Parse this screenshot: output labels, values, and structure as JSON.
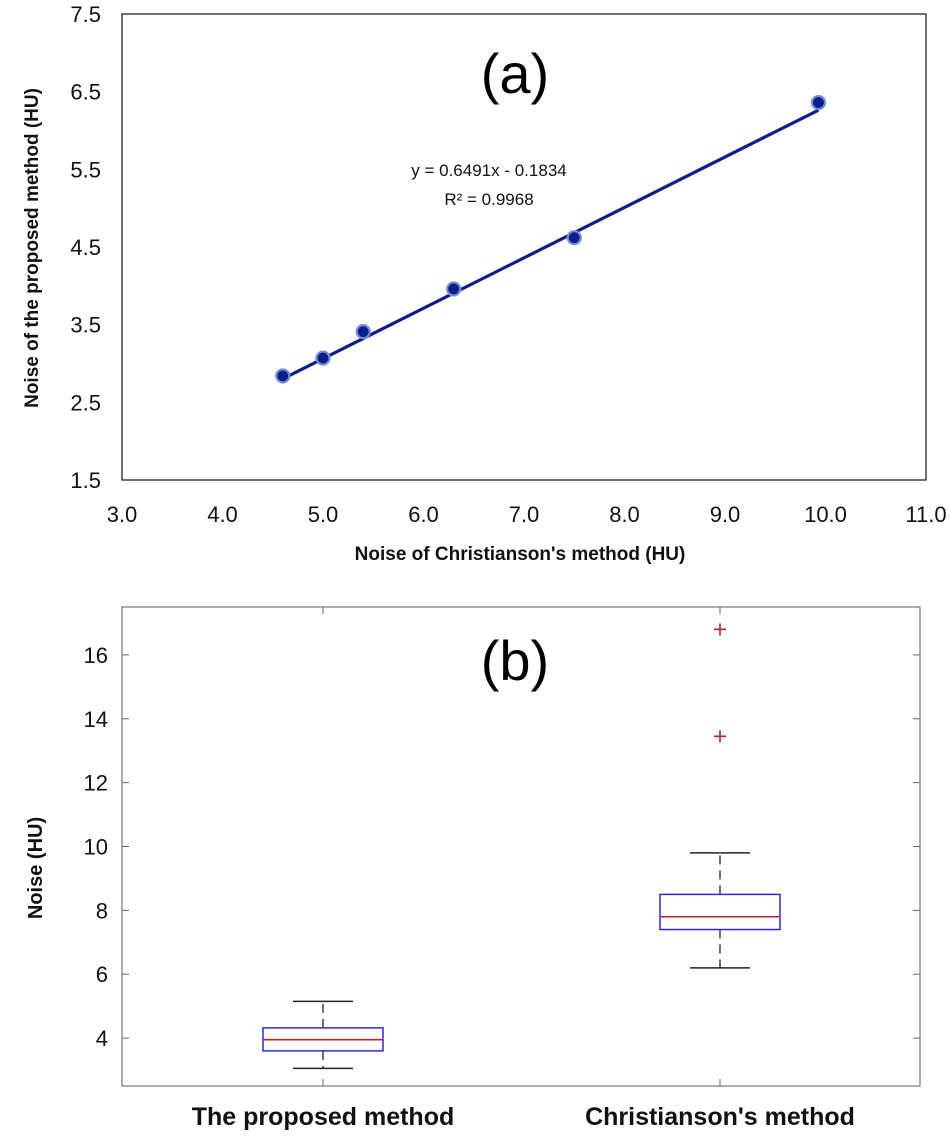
{
  "chart_data": [
    {
      "type": "scatter",
      "panel_label": "(a)",
      "xlabel": "Noise of Christianson's method (HU)",
      "ylabel": "Noise of the proposed method (HU)",
      "xlim": [
        3.0,
        11.0
      ],
      "ylim": [
        1.5,
        7.5
      ],
      "x_ticks": [
        "3.0",
        "4.0",
        "5.0",
        "6.0",
        "7.0",
        "8.0",
        "9.0",
        "10.0",
        "11.0"
      ],
      "y_ticks": [
        "1.5",
        "2.5",
        "3.5",
        "4.5",
        "5.5",
        "6.5",
        "7.5"
      ],
      "points": [
        {
          "x": 4.6,
          "y": 2.84
        },
        {
          "x": 5.0,
          "y": 3.07
        },
        {
          "x": 5.4,
          "y": 3.41
        },
        {
          "x": 6.3,
          "y": 3.96
        },
        {
          "x": 7.5,
          "y": 4.62
        },
        {
          "x": 9.93,
          "y": 6.36
        }
      ],
      "trendline": {
        "slope": 0.6491,
        "intercept": -0.1834,
        "x_range": [
          4.6,
          9.93
        ]
      },
      "annotations": [
        "y = 0.6491x - 0.1834",
        "R² = 0.9968"
      ],
      "grid": false,
      "colors": {
        "points": "#0d1d8c",
        "point_edge": "#6f8fd6",
        "line": "#0d1d8c"
      }
    },
    {
      "type": "box",
      "panel_label": "(b)",
      "ylabel": "Noise  (HU)",
      "ylim": [
        2.5,
        17.5
      ],
      "y_ticks": [
        "4",
        "6",
        "8",
        "10",
        "12",
        "14",
        "16"
      ],
      "categories": [
        "The proposed method",
        "Christianson's method"
      ],
      "boxes": [
        {
          "whisker_low": 3.05,
          "q1": 3.6,
          "median": 3.95,
          "q3": 4.32,
          "whisker_high": 5.15,
          "outliers": []
        },
        {
          "whisker_low": 6.2,
          "q1": 7.4,
          "median": 7.8,
          "q3": 8.5,
          "whisker_high": 9.8,
          "outliers": [
            13.45,
            16.8
          ]
        }
      ],
      "grid": false,
      "colors": {
        "box": "#2a2ad6",
        "median": "#c02020",
        "whisker": "#222222",
        "outlier": "#c02020"
      }
    }
  ]
}
